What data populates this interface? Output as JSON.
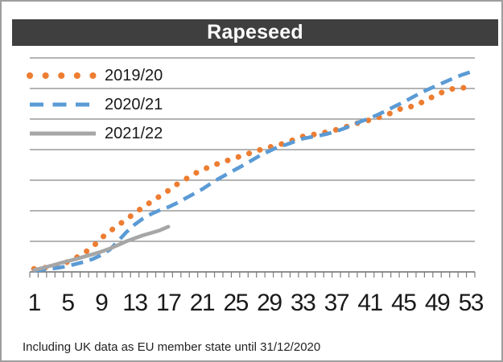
{
  "title": "Rapeseed",
  "footer": "Including UK data as EU member state until 31/12/2020",
  "colors": {
    "title_bar_bg": "#3f3f3f",
    "title_text": "#ffffff",
    "gridline": "#868686",
    "axis": "#7f7f7f",
    "label_text": "#1a1a1a",
    "frame_border": "#9e9e9e",
    "background": "#ffffff"
  },
  "chart_data": {
    "type": "line",
    "title": "Rapeseed",
    "xlabel": "",
    "ylabel": "",
    "x_range": [
      1,
      53
    ],
    "x_tick_labels": [
      1,
      5,
      9,
      13,
      17,
      21,
      25,
      29,
      33,
      37,
      41,
      45,
      49,
      53
    ],
    "ylim": [
      0,
      7
    ],
    "y_axis_labels_visible": false,
    "gridlines": "horizontal, 7 lines above baseline, unlabeled",
    "legend_position": "top-left inside plot",
    "series": [
      {
        "name": "2019/20",
        "color": "#ED7D31",
        "line_style": "dot",
        "x_start": 1,
        "values": [
          0.1,
          0.13,
          0.16,
          0.22,
          0.33,
          0.46,
          0.62,
          0.82,
          1.1,
          1.32,
          1.52,
          1.72,
          1.92,
          2.12,
          2.3,
          2.48,
          2.66,
          2.86,
          3.02,
          3.2,
          3.33,
          3.45,
          3.55,
          3.64,
          3.73,
          3.82,
          3.91,
          4.0,
          4.08,
          4.14,
          4.23,
          4.33,
          4.43,
          4.48,
          4.53,
          4.58,
          4.65,
          4.73,
          4.83,
          4.9,
          4.97,
          5.05,
          5.14,
          5.25,
          5.38,
          5.41,
          5.52,
          5.66,
          5.8,
          5.92,
          6.0,
          6.02,
          6.03
        ]
      },
      {
        "name": "2020/21",
        "color": "#5B9BD5",
        "line_style": "dash",
        "x_start": 1,
        "values": [
          0.04,
          0.07,
          0.1,
          0.14,
          0.19,
          0.26,
          0.33,
          0.42,
          0.55,
          0.72,
          1.0,
          1.3,
          1.55,
          1.75,
          1.9,
          2.02,
          2.12,
          2.25,
          2.4,
          2.55,
          2.7,
          2.88,
          3.05,
          3.2,
          3.35,
          3.5,
          3.66,
          3.82,
          3.95,
          4.08,
          4.16,
          4.26,
          4.36,
          4.41,
          4.46,
          4.52,
          4.6,
          4.7,
          4.82,
          4.93,
          5.03,
          5.15,
          5.28,
          5.42,
          5.55,
          5.7,
          5.85,
          5.98,
          6.1,
          6.22,
          6.34,
          6.45,
          6.54
        ]
      },
      {
        "name": "2021/22",
        "color": "#A6A6A6",
        "line_style": "solid",
        "x_start": 1,
        "values": [
          0.06,
          0.13,
          0.2,
          0.28,
          0.35,
          0.42,
          0.5,
          0.58,
          0.66,
          0.76,
          0.88,
          1.0,
          1.1,
          1.2,
          1.28,
          1.36,
          1.48
        ]
      }
    ]
  }
}
